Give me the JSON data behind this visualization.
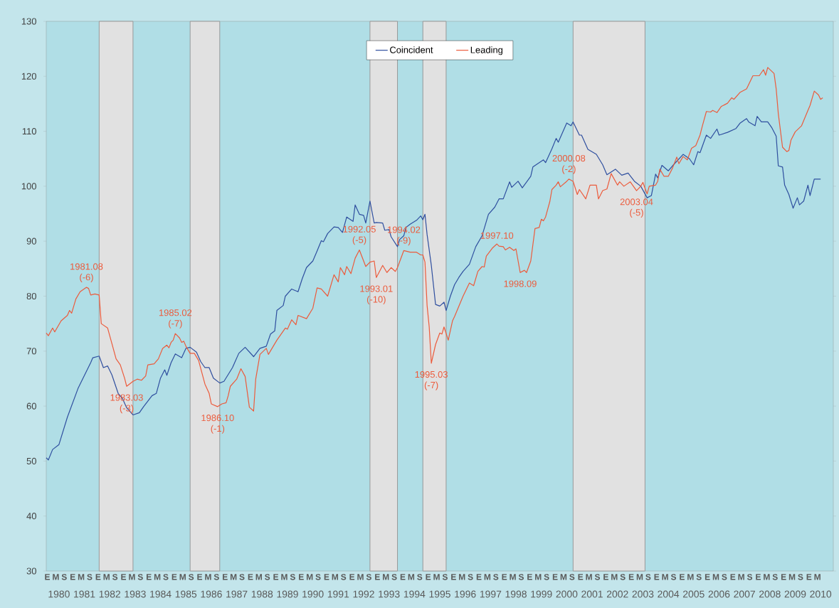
{
  "chart_data": {
    "type": "line",
    "xlim": [
      "1980-01",
      "2011-01"
    ],
    "ylim": [
      30,
      130
    ],
    "yticks": [
      30,
      40,
      50,
      60,
      70,
      80,
      90,
      100,
      110,
      120,
      130
    ],
    "xticks": [
      {
        "value": "1980-07",
        "label": "1980"
      },
      {
        "value": "1981-07",
        "label": "1981"
      },
      {
        "value": "1982-07",
        "label": "1982"
      },
      {
        "value": "1983-07",
        "label": "1983"
      },
      {
        "value": "1984-07",
        "label": "1984"
      },
      {
        "value": "1985-07",
        "label": "1985"
      },
      {
        "value": "1986-07",
        "label": "1986"
      },
      {
        "value": "1987-07",
        "label": "1987"
      },
      {
        "value": "1988-07",
        "label": "1988"
      },
      {
        "value": "1989-07",
        "label": "1989"
      },
      {
        "value": "1990-07",
        "label": "1990"
      },
      {
        "value": "1991-07",
        "label": "1991"
      },
      {
        "value": "1992-07",
        "label": "1992"
      },
      {
        "value": "1993-07",
        "label": "1993"
      },
      {
        "value": "1994-07",
        "label": "1994"
      },
      {
        "value": "1995-07",
        "label": "1995"
      },
      {
        "value": "1996-07",
        "label": "1996"
      },
      {
        "value": "1997-07",
        "label": "1997"
      },
      {
        "value": "1998-07",
        "label": "1998"
      },
      {
        "value": "1999-07",
        "label": "1999"
      },
      {
        "value": "2000-07",
        "label": "2000"
      },
      {
        "value": "2001-07",
        "label": "2001"
      },
      {
        "value": "2002-07",
        "label": "2002"
      },
      {
        "value": "2003-07",
        "label": "2003"
      },
      {
        "value": "2004-07",
        "label": "2004"
      },
      {
        "value": "2005-07",
        "label": "2005"
      },
      {
        "value": "2006-07",
        "label": "2006"
      },
      {
        "value": "2007-07",
        "label": "2007"
      },
      {
        "value": "2008-07",
        "label": "2008"
      },
      {
        "value": "2009-07",
        "label": "2009"
      },
      {
        "value": "2010-07",
        "label": "2010"
      }
    ],
    "legend": "top",
    "bands": [
      {
        "axis": "x",
        "from": "1982-02",
        "to": "1983-06",
        "color": "#e1e1e1"
      },
      {
        "axis": "x",
        "from": "1985-09",
        "to": "1986-11",
        "color": "#e1e1e1"
      },
      {
        "axis": "x",
        "from": "1992-10",
        "to": "1993-11",
        "color": "#e1e1e1"
      },
      {
        "axis": "x",
        "from": "1994-11",
        "to": "1995-10",
        "color": "#e1e1e1"
      },
      {
        "axis": "x",
        "from": "2000-10",
        "to": "2003-08",
        "color": "#e1e1e1"
      }
    ],
    "series": [
      {
        "name": "Coincident",
        "color": "#2f4f9f",
        "x": [
          "1980-01",
          "1980-02",
          "1980-04",
          "1980-07",
          "1980-11",
          "1981-04",
          "1981-10",
          "1981-11",
          "1982-02",
          "1982-04",
          "1982-06",
          "1982-08",
          "1982-11",
          "1983-01",
          "1983-03",
          "1983-06",
          "1983-09",
          "1983-11",
          "1984-03",
          "1984-05",
          "1984-07",
          "1984-09",
          "1984-10",
          "1984-12",
          "1985-02",
          "1985-05",
          "1985-07",
          "1985-09",
          "1985-12",
          "1986-02",
          "1986-04",
          "1986-06",
          "1986-08",
          "1986-11",
          "1987-01",
          "1987-05",
          "1987-08",
          "1987-11",
          "1988-03",
          "1988-06",
          "1988-09",
          "1988-11",
          "1989-01",
          "1989-02",
          "1989-05",
          "1989-06",
          "1989-09",
          "1989-12",
          "1990-02",
          "1990-04",
          "1990-07",
          "1990-09",
          "1990-11",
          "1990-12",
          "1991-02",
          "1991-05",
          "1991-07",
          "1991-09",
          "1991-11",
          "1992-02",
          "1992-03",
          "1992-05",
          "1992-07",
          "1992-08",
          "1992-10",
          "1992-12",
          "1993-01",
          "1993-04",
          "1993-05",
          "1993-07",
          "1993-08",
          "1993-11",
          "1993-12",
          "1994-02",
          "1994-03",
          "1994-05",
          "1994-08",
          "1994-10",
          "1994-11",
          "1994-12",
          "1995-01",
          "1995-03",
          "1995-05",
          "1995-07",
          "1995-09",
          "1995-10",
          "1995-12",
          "1996-02",
          "1996-04",
          "1996-06",
          "1996-09",
          "1996-12",
          "1997-03",
          "1997-06",
          "1997-09",
          "1997-11",
          "1998-01",
          "1998-04",
          "1998-05",
          "1998-08",
          "1998-10",
          "1999-02",
          "1999-03",
          "1999-08",
          "1999-09",
          "1999-12",
          "2000-02",
          "2000-03",
          "2000-07",
          "2000-09",
          "2000-10",
          "2001-01",
          "2001-02",
          "2001-05",
          "2001-09",
          "2001-12",
          "2002-02",
          "2002-06",
          "2002-09",
          "2002-12",
          "2003-03",
          "2003-06",
          "2003-09",
          "2003-11",
          "2004-01",
          "2004-02",
          "2004-04",
          "2004-07",
          "2004-09",
          "2005-02",
          "2005-05",
          "2005-07",
          "2005-09",
          "2005-10",
          "2006-01",
          "2006-03",
          "2006-06",
          "2006-07",
          "2006-11",
          "2007-03",
          "2007-05",
          "2007-08",
          "2007-09",
          "2007-12",
          "2008-01",
          "2008-03",
          "2008-06",
          "2008-08",
          "2008-10",
          "2008-11",
          "2009-01",
          "2009-02",
          "2009-04",
          "2009-06",
          "2009-08",
          "2009-09",
          "2009-11",
          "2010-01",
          "2010-02",
          "2010-04",
          "2010-07"
        ],
        "values": [
          50.6,
          50.2,
          52.1,
          53.0,
          58.0,
          63.2,
          67.9,
          68.8,
          69.1,
          67.0,
          67.3,
          65.7,
          62.3,
          61.4,
          59.7,
          58.4,
          58.8,
          59.9,
          61.9,
          62.3,
          65.1,
          66.6,
          65.6,
          67.9,
          69.5,
          68.8,
          70.5,
          70.7,
          69.8,
          68.1,
          67.0,
          67.0,
          65.1,
          64.2,
          64.5,
          67.0,
          69.6,
          70.7,
          69.0,
          70.5,
          70.9,
          73.1,
          73.7,
          77.4,
          78.3,
          80.0,
          81.3,
          80.8,
          83.2,
          85.2,
          86.4,
          88.2,
          90.1,
          89.9,
          91.4,
          92.6,
          92.5,
          91.6,
          94.4,
          93.6,
          96.6,
          94.9,
          94.7,
          93.3,
          97.3,
          93.3,
          93.4,
          93.3,
          92.0,
          92.1,
          90.8,
          89.0,
          90.3,
          91.0,
          92.5,
          93.1,
          93.8,
          94.6,
          93.9,
          94.9,
          91.2,
          85.6,
          78.5,
          78.2,
          78.9,
          77.4,
          80.0,
          82.1,
          83.4,
          84.5,
          85.8,
          89.0,
          91.0,
          94.9,
          96.2,
          97.7,
          97.7,
          100.8,
          99.8,
          100.9,
          99.7,
          101.8,
          103.5,
          104.8,
          104.3,
          106.8,
          108.7,
          108.0,
          111.5,
          111.0,
          111.7,
          109.3,
          109.3,
          106.7,
          105.8,
          103.9,
          102.1,
          103.1,
          102.0,
          102.4,
          100.9,
          100.0,
          97.9,
          98.3,
          102.2,
          101.5,
          103.8,
          102.8,
          103.7,
          105.8,
          105.0,
          103.9,
          106.3,
          106.1,
          109.3,
          108.7,
          110.4,
          109.3,
          109.8,
          110.5,
          111.5,
          112.3,
          111.7,
          111.0,
          112.7,
          111.7,
          111.7,
          110.6,
          109.1,
          103.7,
          103.5,
          100.2,
          98.5,
          96.0,
          97.9,
          96.6,
          97.3,
          100.2,
          98.3,
          101.3,
          101.3
        ]
      },
      {
        "name": "Leading",
        "color": "#ec5b3c",
        "x": [
          "1980-01",
          "1980-02",
          "1980-04",
          "1980-05",
          "1980-08",
          "1980-11",
          "1980-12",
          "1981-01",
          "1981-03",
          "1981-05",
          "1981-08",
          "1981-09",
          "1981-10",
          "1981-12",
          "1982-02",
          "1982-03",
          "1982-06",
          "1982-08",
          "1982-10",
          "1982-12",
          "1983-02",
          "1983-03",
          "1983-06",
          "1983-08",
          "1983-10",
          "1983-12",
          "1984-01",
          "1984-04",
          "1984-06",
          "1984-08",
          "1984-10",
          "1984-11",
          "1984-12",
          "1985-01",
          "1985-02",
          "1985-04",
          "1985-05",
          "1985-06",
          "1985-07",
          "1985-09",
          "1985-11",
          "1986-01",
          "1986-04",
          "1986-06",
          "1986-07",
          "1986-10",
          "1986-12",
          "1987-02",
          "1987-03",
          "1987-04",
          "1987-07",
          "1987-09",
          "1987-11",
          "1988-01",
          "1988-03",
          "1988-04",
          "1988-06",
          "1988-09",
          "1988-10",
          "1989-02",
          "1989-06",
          "1989-07",
          "1989-09",
          "1989-11",
          "1989-12",
          "1990-04",
          "1990-07",
          "1990-09",
          "1990-11",
          "1991-02",
          "1991-05",
          "1991-07",
          "1991-08",
          "1991-10",
          "1991-11",
          "1992-01",
          "1992-03",
          "1992-05",
          "1992-07",
          "1992-08",
          "1992-10",
          "1992-12",
          "1993-01",
          "1993-04",
          "1993-06",
          "1993-08",
          "1993-10",
          "1993-11",
          "1994-02",
          "1994-05",
          "1994-08",
          "1994-10",
          "1994-11",
          "1994-12",
          "1995-01",
          "1995-02",
          "1995-03",
          "1995-05",
          "1995-07",
          "1995-08",
          "1995-09",
          "1995-11",
          "1996-01",
          "1996-02",
          "1996-06",
          "1996-09",
          "1996-11",
          "1997-01",
          "1997-03",
          "1997-04",
          "1997-05",
          "1997-08",
          "1997-10",
          "1997-11",
          "1998-01",
          "1998-02",
          "1998-04",
          "1998-06",
          "1998-07",
          "1998-09",
          "1998-11",
          "1998-12",
          "1999-02",
          "1999-04",
          "1999-06",
          "1999-07",
          "1999-08",
          "1999-09",
          "1999-11",
          "1999-12",
          "2000-02",
          "2000-03",
          "2000-04",
          "2000-07",
          "2000-08",
          "2000-10",
          "2000-12",
          "2001-01",
          "2001-04",
          "2001-06",
          "2001-09",
          "2001-10",
          "2001-12",
          "2002-02",
          "2002-04",
          "2002-07",
          "2002-08",
          "2002-10",
          "2003-01",
          "2003-04",
          "2003-06",
          "2003-07",
          "2003-09",
          "2003-10",
          "2004-01",
          "2004-02",
          "2004-03",
          "2004-05",
          "2004-07",
          "2004-09",
          "2004-11",
          "2004-12",
          "2005-02",
          "2005-04",
          "2005-06",
          "2005-08",
          "2005-10",
          "2005-11",
          "2006-01",
          "2006-03",
          "2006-04",
          "2006-06",
          "2006-08",
          "2006-11",
          "2007-01",
          "2007-02",
          "2007-05",
          "2007-08",
          "2007-11",
          "2008-02",
          "2008-04",
          "2008-05",
          "2008-06",
          "2008-09",
          "2008-10",
          "2008-11",
          "2009-01",
          "2009-03",
          "2009-04",
          "2009-05",
          "2009-07",
          "2009-10",
          "2010-01",
          "2010-02",
          "2010-04",
          "2010-06",
          "2010-07",
          "2010-08"
        ],
        "values": [
          73.3,
          72.8,
          74.2,
          73.5,
          75.5,
          76.5,
          77.4,
          76.9,
          79.5,
          80.8,
          81.6,
          81.4,
          80.2,
          80.4,
          80.2,
          75.0,
          74.2,
          71.4,
          68.6,
          67.5,
          65.1,
          63.6,
          64.5,
          64.9,
          64.7,
          65.5,
          67.5,
          67.7,
          68.6,
          70.5,
          71.1,
          70.6,
          71.6,
          72.0,
          73.2,
          72.4,
          71.6,
          71.8,
          70.9,
          69.6,
          69.6,
          68.3,
          64.0,
          62.3,
          60.4,
          59.9,
          60.4,
          60.6,
          61.9,
          63.6,
          64.9,
          66.8,
          65.4,
          59.8,
          59.1,
          64.9,
          69.4,
          70.5,
          69.4,
          72.0,
          74.2,
          74.0,
          75.7,
          74.8,
          76.5,
          75.9,
          77.8,
          81.5,
          81.3,
          80.0,
          83.9,
          82.6,
          85.2,
          83.9,
          85.4,
          84.1,
          86.9,
          88.4,
          86.4,
          85.4,
          86.2,
          86.4,
          83.4,
          85.6,
          84.3,
          85.2,
          84.5,
          85.2,
          88.3,
          88.0,
          88.0,
          87.5,
          87.5,
          86.2,
          78.3,
          74.4,
          67.8,
          71.2,
          73.3,
          73.1,
          74.4,
          72.0,
          75.5,
          76.3,
          80.0,
          82.4,
          81.9,
          84.5,
          85.4,
          85.3,
          87.3,
          88.8,
          89.5,
          89.1,
          89.0,
          88.4,
          88.9,
          88.3,
          88.6,
          84.3,
          84.7,
          84.3,
          86.4,
          92.3,
          92.5,
          94.0,
          93.7,
          94.4,
          97.2,
          99.4,
          100.2,
          100.8,
          99.9,
          100.9,
          101.3,
          100.9,
          98.5,
          99.4,
          97.7,
          100.2,
          100.2,
          97.7,
          99.2,
          99.5,
          102.3,
          100.2,
          100.8,
          100.0,
          100.8,
          99.2,
          100.0,
          100.7,
          98.6,
          100.0,
          100.2,
          100.9,
          103.1,
          101.8,
          101.8,
          103.3,
          105.3,
          104.1,
          105.4,
          104.8,
          106.9,
          107.4,
          109.3,
          110.8,
          113.6,
          113.5,
          113.8,
          113.4,
          114.5,
          115.1,
          116.1,
          115.8,
          117.1,
          117.7,
          120.1,
          120.1,
          121.2,
          120.2,
          121.6,
          120.5,
          117.7,
          113.2,
          107.1,
          106.3,
          106.5,
          108.4,
          109.9,
          111.0,
          113.8,
          114.7,
          117.3,
          116.6,
          115.8,
          116.1
        ]
      }
    ],
    "annotations": [
      {
        "text": "1981.08 (-6)",
        "x": "1981-08",
        "y": 81.6
      },
      {
        "text": "1983.03 (-3)",
        "x": "1983-03",
        "y": 63.6
      },
      {
        "text": "1985.02 (-7)",
        "x": "1985-02",
        "y": 73.2
      },
      {
        "text": "1986.10 (-1)",
        "x": "1986-10",
        "y": 59.9
      },
      {
        "text": "1992.05 (-5)",
        "x": "1992-05",
        "y": 88.4
      },
      {
        "text": "1993.01 (-10)",
        "x": "1993-01",
        "y": 83.4
      },
      {
        "text": "1994.02 (-9)",
        "x": "1994-02",
        "y": 88.3
      },
      {
        "text": "1995.03 (-7)",
        "x": "1995-03",
        "y": 67.8
      },
      {
        "text": "1997.10",
        "x": "1997-10",
        "y": 89.5
      },
      {
        "text": "1998.09",
        "x": "1998-09",
        "y": 84.3
      },
      {
        "text": "2000.08 (-2)",
        "x": "2000-08",
        "y": 101.3
      },
      {
        "text": "2003.04 (-5)",
        "x": "2003-04",
        "y": 99.2
      },
      "E",
      "M",
      "S",
      "E",
      "M",
      "S",
      "E",
      "M",
      "S",
      "E",
      "M",
      "S",
      "E",
      "M",
      "S",
      "E",
      "M",
      "S",
      "E",
      "M",
      "S",
      "E",
      "M",
      "S",
      "E",
      "M",
      "S",
      "E",
      "M",
      "S",
      "E",
      "M",
      "S",
      "E",
      "M",
      "S",
      "E",
      "M",
      "S",
      "E",
      "M",
      "S",
      "E",
      "M",
      "S",
      "E",
      "M",
      "S",
      "E",
      "M",
      "S",
      "E",
      "M",
      "S",
      "E",
      "M",
      "S",
      "E",
      "M",
      "S",
      "E",
      "M",
      "S",
      "E",
      "M",
      "S",
      "E",
      "M",
      "S",
      "E",
      "M",
      "S",
      "E",
      "M",
      "S",
      "E",
      "M",
      "S",
      "E",
      "M",
      "S",
      "E",
      "M",
      "S",
      "E",
      "M",
      "S",
      "E",
      "M",
      "S",
      "E",
      "M"
    ]
  }
}
